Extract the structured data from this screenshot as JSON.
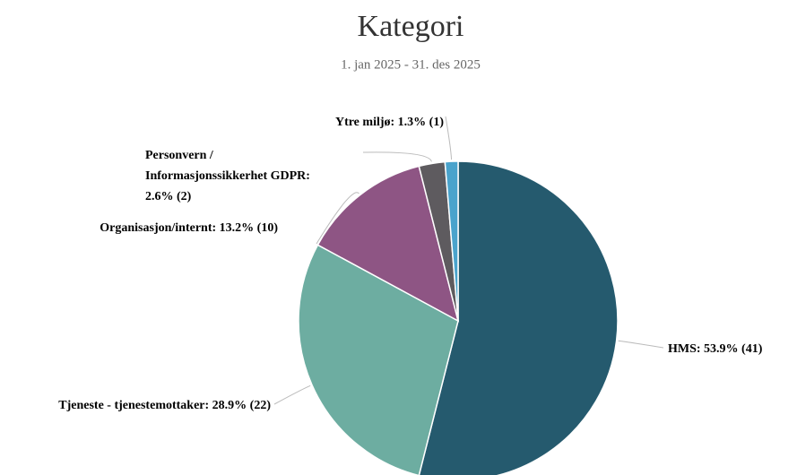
{
  "chart_data": {
    "type": "pie",
    "title": "Kategori",
    "subtitle": "1. jan 2025 - 31. des 2025",
    "values": [
      41,
      22,
      10,
      2,
      1
    ],
    "value_labels": [
      "HMS: 53.9% (41)",
      "Tjeneste - tjenestemottaker: 28.9% (22)",
      "Organisasjon/internt: 13.2% (10)",
      [
        "Personvern /",
        "Informasjonssikkerhet GDPR:",
        "2.6% (2)"
      ],
      "Ytre miljø: 1.3% (1)"
    ],
    "colors": [
      "#255a6e",
      "#6dada1",
      "#8e5584",
      "#5e5b5f",
      "#4aa3cc"
    ]
  }
}
